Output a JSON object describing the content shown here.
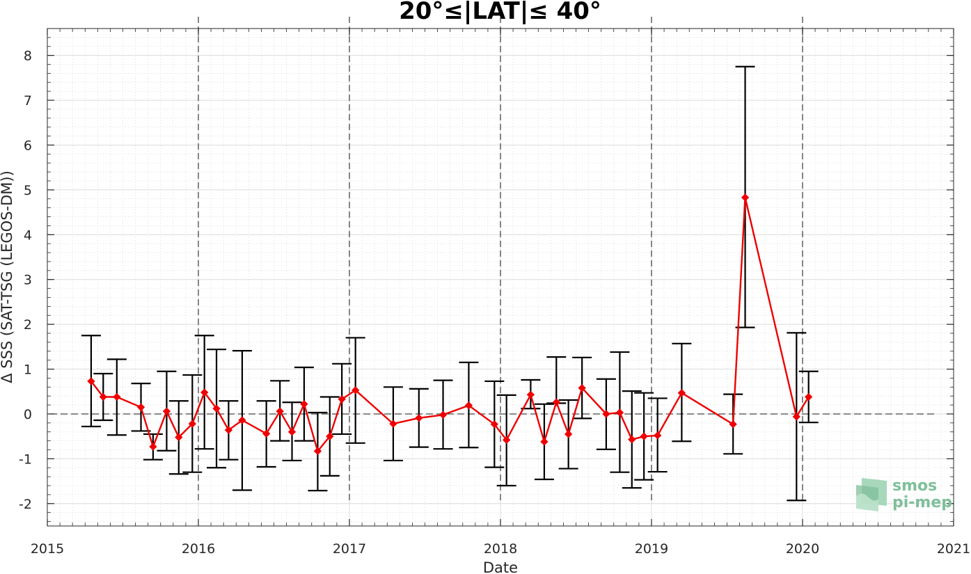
{
  "chart_data": {
    "type": "scatter",
    "title": "20°≤|LAT|≤ 40°",
    "xlabel": "Date",
    "ylabel": "Δ SSS (SAT-TSG (LEGOS-DM))",
    "xlim": [
      2015,
      2021
    ],
    "ylim": [
      -2.5,
      8.6
    ],
    "xticks": [
      "2015",
      "2016",
      "2017",
      "2018",
      "2019",
      "2020",
      "2021"
    ],
    "yticks": [
      "-2",
      "-1",
      "0",
      "1",
      "2",
      "3",
      "4",
      "5",
      "6",
      "7",
      "8"
    ],
    "grid": true,
    "zero_line": true,
    "year_dividers": [
      2016,
      2017,
      2018,
      2019,
      2020
    ],
    "series": [
      {
        "line_color": "#ee0000",
        "errorbar_color": "#000000",
        "x": [
          2015.29,
          2015.37,
          2015.46,
          2015.62,
          2015.7,
          2015.79,
          2015.87,
          2015.96,
          2016.04,
          2016.12,
          2016.2,
          2016.29,
          2016.45,
          2016.54,
          2016.62,
          2016.7,
          2016.79,
          2016.87,
          2016.95,
          2017.04,
          2017.29,
          2017.46,
          2017.62,
          2017.79,
          2017.96,
          2018.04,
          2018.2,
          2018.29,
          2018.37,
          2018.45,
          2018.54,
          2018.7,
          2018.79,
          2018.87,
          2018.95,
          2019.04,
          2019.2,
          2019.54,
          2019.62,
          2019.96,
          2020.04
        ],
        "y": [
          0.73,
          0.38,
          0.38,
          0.15,
          -0.73,
          0.06,
          -0.52,
          -0.22,
          0.48,
          0.12,
          -0.36,
          -0.14,
          -0.44,
          0.06,
          -0.4,
          0.22,
          -0.83,
          -0.5,
          0.33,
          0.53,
          -0.22,
          -0.09,
          -0.02,
          0.19,
          -0.23,
          -0.58,
          0.43,
          -0.62,
          0.26,
          -0.45,
          0.58,
          0.0,
          0.03,
          -0.57,
          -0.5,
          -0.48,
          0.47,
          -0.23,
          4.83,
          -0.06,
          0.38
        ],
        "err_low": [
          -0.28,
          -0.14,
          -0.47,
          -0.38,
          -1.02,
          -0.82,
          -1.34,
          -1.3,
          -0.78,
          -1.2,
          -1.02,
          -1.7,
          -1.18,
          -0.6,
          -1.04,
          -0.6,
          -1.71,
          -1.38,
          -0.45,
          -0.65,
          -1.04,
          -0.74,
          -0.78,
          -0.75,
          -1.19,
          -1.6,
          0.12,
          -1.46,
          0.24,
          -1.22,
          -0.1,
          -0.79,
          -1.3,
          -1.65,
          -1.47,
          -1.29,
          -0.61,
          -0.89,
          1.93,
          -1.93,
          -0.19
        ],
        "err_high": [
          1.75,
          0.9,
          1.22,
          0.68,
          -0.45,
          0.95,
          0.29,
          0.87,
          1.75,
          1.44,
          0.29,
          1.41,
          0.29,
          0.74,
          0.26,
          1.04,
          0.03,
          0.38,
          1.12,
          1.7,
          0.6,
          0.56,
          0.75,
          1.15,
          0.73,
          0.42,
          0.76,
          0.22,
          1.27,
          0.31,
          1.26,
          0.78,
          1.38,
          0.51,
          0.47,
          0.35,
          1.57,
          0.44,
          7.75,
          1.81,
          0.95
        ]
      }
    ]
  },
  "logo": {
    "line1": "smos",
    "line2": "pi-mep"
  }
}
